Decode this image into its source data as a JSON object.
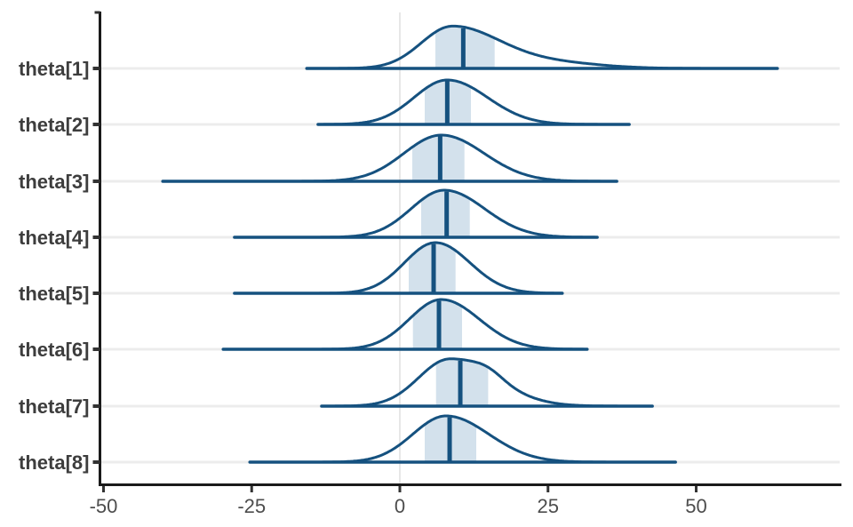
{
  "chart_data": {
    "type": "area",
    "variant": "density-ridgeline",
    "title": "",
    "xlabel": "",
    "ylabel": "",
    "legend": null,
    "grid": "x-zero-line and per-row horizontal gridlines",
    "x_ticks": [
      -50,
      -25,
      0,
      25,
      50
    ],
    "x_tick_labels": [
      "-50",
      "-25",
      "0",
      "25",
      "50"
    ],
    "xlim": [
      -50.5,
      74
    ],
    "categories": [
      "theta[1]",
      "theta[2]",
      "theta[3]",
      "theta[4]",
      "theta[5]",
      "theta[6]",
      "theta[7]",
      "theta[8]"
    ],
    "series": [
      {
        "name": "theta[1]",
        "median": 10.7,
        "interval_50": [
          6.0,
          16.0
        ],
        "range": [
          -15.7,
          63.7
        ],
        "mode": 8.8,
        "sd_left": 5.2,
        "sd_right": 8.0,
        "peak_height": 47,
        "tail_bump": {
          "amp": 6,
          "center": 26,
          "sd": 8
        }
      },
      {
        "name": "theta[2]",
        "median": 8.0,
        "interval_50": [
          4.2,
          12.0
        ],
        "range": [
          -13.8,
          38.7
        ],
        "mode": 8.0,
        "sd_left": 5.6,
        "sd_right": 6.8,
        "peak_height": 50,
        "tail_bump": null
      },
      {
        "name": "theta[3]",
        "median": 6.8,
        "interval_50": [
          2.1,
          10.9
        ],
        "range": [
          -40.0,
          36.6
        ],
        "mode": 7.0,
        "sd_left": 6.3,
        "sd_right": 7.2,
        "peak_height": 52,
        "tail_bump": null
      },
      {
        "name": "theta[4]",
        "median": 7.9,
        "interval_50": [
          3.6,
          11.8
        ],
        "range": [
          -27.9,
          33.3
        ],
        "mode": 7.5,
        "sd_left": 5.6,
        "sd_right": 6.8,
        "peak_height": 53,
        "tail_bump": null
      },
      {
        "name": "theta[5]",
        "median": 5.7,
        "interval_50": [
          1.5,
          9.4
        ],
        "range": [
          -27.9,
          27.4
        ],
        "mode": 6.0,
        "sd_left": 5.2,
        "sd_right": 5.8,
        "peak_height": 57,
        "tail_bump": null
      },
      {
        "name": "theta[6]",
        "median": 6.6,
        "interval_50": [
          2.2,
          10.5
        ],
        "range": [
          -29.8,
          31.6
        ],
        "mode": 7.0,
        "sd_left": 5.4,
        "sd_right": 6.4,
        "peak_height": 56,
        "tail_bump": null
      },
      {
        "name": "theta[7]",
        "median": 10.2,
        "interval_50": [
          6.1,
          14.9
        ],
        "range": [
          -13.2,
          42.6
        ],
        "mode": 8.4,
        "sd_left": 5.2,
        "sd_right": 7.6,
        "peak_height": 53,
        "tail_bump": {
          "amp": 7,
          "center": 15,
          "sd": 2.5
        }
      },
      {
        "name": "theta[8]",
        "median": 8.4,
        "interval_50": [
          4.2,
          12.9
        ],
        "range": [
          -25.3,
          46.5
        ],
        "mode": 7.8,
        "sd_left": 5.6,
        "sd_right": 7.2,
        "peak_height": 52,
        "tail_bump": null
      }
    ],
    "colors": {
      "line": "#15517f",
      "fill": "#d3e1ec",
      "grid_h": "#ececec",
      "grid_v": "#e7e7e7",
      "axis": "#1a1a1a",
      "tick": "#333333",
      "y_label": "#3d3d3d",
      "x_label": "#4d4d4d"
    }
  }
}
